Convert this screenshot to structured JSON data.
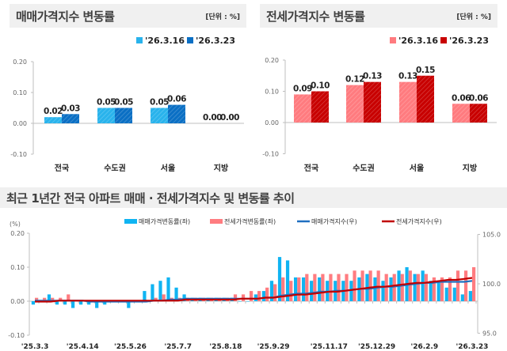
{
  "panels": [
    {
      "title": "매매가격지수 변동률",
      "unit": "[단위 : %]",
      "colors": [
        "#29b3ec",
        "#0a6fc4"
      ]
    },
    {
      "title": "전세가격지수 변동률",
      "unit": "[단위 : %]",
      "colors": [
        "#ff7b7f",
        "#c80000"
      ]
    }
  ],
  "bottom": {
    "title": "최근 1년간 전국 아파트 매매 · 전세가격지수 및 변동률 추이",
    "left_unit": "(%)",
    "colors": {
      "sale_rate": "#10b4f2",
      "jeonse_rate": "#ff7c80",
      "sale_index": "#1f6fc0",
      "jeonse_index": "#c00000"
    }
  },
  "chart_data": [
    {
      "type": "bar",
      "title": "매매가격지수 변동률",
      "categories": [
        "전국",
        "수도권",
        "서울",
        "지방"
      ],
      "series": [
        {
          "name": "'26.3.16",
          "values": [
            0.02,
            0.05,
            0.05,
            0.0
          ]
        },
        {
          "name": "'26.3.23",
          "values": [
            0.03,
            0.05,
            0.06,
            0.0
          ]
        }
      ],
      "ylim": [
        -0.1,
        0.2
      ],
      "yticks": [
        "0.20",
        "0.10",
        "0.00",
        "-0.10"
      ],
      "legend": "top-right"
    },
    {
      "type": "bar",
      "title": "전세가격지수 변동률",
      "categories": [
        "전국",
        "수도권",
        "서울",
        "지방"
      ],
      "series": [
        {
          "name": "'26.3.16",
          "values": [
            0.09,
            0.12,
            0.13,
            0.06
          ]
        },
        {
          "name": "'26.3.23",
          "values": [
            0.1,
            0.13,
            0.15,
            0.06
          ]
        }
      ],
      "ylim": [
        -0.1,
        0.2
      ],
      "yticks": [
        "0.20",
        "0.10",
        "0.00",
        "-0.10"
      ],
      "legend": "top-right"
    },
    {
      "type": "bar+line",
      "title": "최근 1년간 전국 아파트 매매 · 전세가격지수 및 변동률 추이",
      "x_tick_labels": [
        "'25.3.3",
        "'25.4.14",
        "'25.5.26",
        "'25.7.7",
        "'25.8.18",
        "'25.9.29",
        "'25.11.17",
        "'25.12.29",
        "'26.2.9",
        "'26.3.23"
      ],
      "x_tick_weeks": [
        0,
        6,
        12,
        18,
        24,
        30,
        37,
        43,
        49,
        55
      ],
      "ylim_left": [
        -0.1,
        0.2
      ],
      "yticks_left": [
        "0.20",
        "0.10",
        "0.00",
        "-0.10"
      ],
      "ylim_right": [
        95.0,
        105.0
      ],
      "yticks_right": [
        "105.0",
        "100.0",
        "95.0"
      ],
      "legend": "top",
      "series": [
        {
          "name": "매매가격변동률(좌)",
          "axis": "left",
          "kind": "bar",
          "values": [
            -0.01,
            0.0,
            0.02,
            -0.01,
            -0.01,
            -0.02,
            -0.01,
            -0.01,
            -0.02,
            -0.01,
            0.0,
            0.0,
            -0.02,
            0.0,
            0.03,
            0.05,
            0.06,
            0.07,
            0.04,
            0.02,
            0.01,
            0.01,
            0.01,
            0.01,
            0.01,
            0.01,
            0.0,
            0.0,
            0.02,
            0.03,
            0.06,
            0.13,
            0.12,
            0.07,
            0.07,
            0.06,
            0.07,
            0.06,
            0.06,
            0.06,
            0.06,
            0.07,
            0.08,
            0.07,
            0.06,
            0.07,
            0.09,
            0.1,
            0.08,
            0.09,
            0.06,
            0.06,
            0.04,
            0.04,
            0.02,
            0.03
          ]
        },
        {
          "name": "전세가격변동률(좌)",
          "axis": "left",
          "kind": "bar",
          "values": [
            0.01,
            0.01,
            0.01,
            0.01,
            0.02,
            0.0,
            0.0,
            0.0,
            0.0,
            0.0,
            0.0,
            0.0,
            0.0,
            0.0,
            0.0,
            0.01,
            0.02,
            0.01,
            0.01,
            0.01,
            0.01,
            0.01,
            0.01,
            0.01,
            0.01,
            0.02,
            0.02,
            0.03,
            0.03,
            0.04,
            0.05,
            0.07,
            0.06,
            0.07,
            0.08,
            0.08,
            0.08,
            0.08,
            0.08,
            0.08,
            0.09,
            0.09,
            0.09,
            0.09,
            0.08,
            0.08,
            0.08,
            0.09,
            0.08,
            0.08,
            0.07,
            0.07,
            0.07,
            0.09,
            0.09,
            0.1
          ]
        },
        {
          "name": "매매가격지수(우)",
          "axis": "right",
          "kind": "line",
          "values": [
            98.3,
            98.3,
            98.3,
            98.3,
            98.3,
            98.3,
            98.3,
            98.2,
            98.2,
            98.2,
            98.2,
            98.2,
            98.2,
            98.2,
            98.2,
            98.3,
            98.3,
            98.4,
            98.4,
            98.5,
            98.5,
            98.5,
            98.5,
            98.5,
            98.5,
            98.5,
            98.5,
            98.5,
            98.5,
            98.6,
            98.6,
            98.8,
            98.9,
            99.0,
            99.0,
            99.1,
            99.2,
            99.2,
            99.3,
            99.3,
            99.4,
            99.5,
            99.5,
            99.6,
            99.7,
            99.7,
            99.8,
            99.9,
            100.0,
            100.1,
            100.1,
            100.2,
            100.2,
            100.2,
            100.2,
            100.3
          ]
        },
        {
          "name": "전세가격지수(우)",
          "axis": "right",
          "kind": "line",
          "values": [
            98.2,
            98.2,
            98.2,
            98.3,
            98.3,
            98.3,
            98.3,
            98.3,
            98.3,
            98.3,
            98.3,
            98.3,
            98.3,
            98.3,
            98.3,
            98.3,
            98.3,
            98.3,
            98.3,
            98.4,
            98.4,
            98.4,
            98.4,
            98.4,
            98.4,
            98.4,
            98.5,
            98.5,
            98.5,
            98.6,
            98.6,
            98.7,
            98.8,
            98.9,
            98.9,
            99.0,
            99.1,
            99.2,
            99.2,
            99.3,
            99.4,
            99.5,
            99.6,
            99.7,
            99.7,
            99.8,
            99.9,
            100.0,
            100.1,
            100.1,
            100.2,
            100.3,
            100.4,
            100.4,
            100.5,
            100.6
          ]
        }
      ]
    }
  ]
}
